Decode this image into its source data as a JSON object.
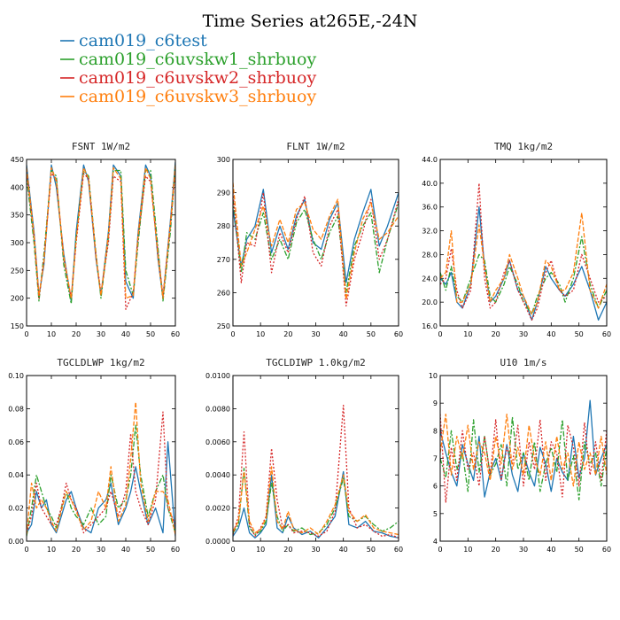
{
  "figure": {
    "title": "Time Series at265E,-24N"
  },
  "legend": [
    {
      "name": "cam019_c6test",
      "color": "#1f77b4",
      "dash": ""
    },
    {
      "name": "cam019_c6uvskw1_shrbuoy",
      "color": "#2ca02c",
      "dash": "6,2,2,2"
    },
    {
      "name": "cam019_c6uvskw2_shrbuoy",
      "color": "#d62728",
      "dash": "2,2"
    },
    {
      "name": "cam019_c6uvskw3_shrbuoy",
      "color": "#ff7f0e",
      "dash": "5,2"
    }
  ],
  "chart_data": [
    {
      "type": "line",
      "title": "FSNT  1W/m2",
      "xlim": [
        0,
        60
      ],
      "xticks": [
        0,
        10,
        20,
        30,
        40,
        50,
        60
      ],
      "ylim": [
        150,
        450
      ],
      "yticks": [
        150,
        200,
        250,
        300,
        350,
        400,
        450
      ],
      "yticklabels": [
        "150",
        "200",
        "250",
        "300",
        "350",
        "400",
        "450"
      ],
      "x": [
        0,
        3,
        5,
        7,
        10,
        12,
        15,
        18,
        20,
        23,
        25,
        28,
        30,
        33,
        35,
        38,
        40,
        43,
        45,
        48,
        50,
        53,
        55,
        58,
        60
      ],
      "series": [
        {
          "name": "cam019_c6test",
          "values": [
            440,
            320,
            205,
            260,
            440,
            400,
            280,
            195,
            320,
            440,
            410,
            270,
            205,
            320,
            440,
            420,
            230,
            200,
            320,
            440,
            420,
            270,
            200,
            340,
            445
          ]
        },
        {
          "name": "cam019_c6uvskw1_shrbuoy",
          "values": [
            420,
            300,
            195,
            280,
            430,
            420,
            260,
            190,
            310,
            430,
            420,
            280,
            200,
            310,
            430,
            430,
            250,
            205,
            300,
            430,
            430,
            290,
            195,
            320,
            440
          ]
        },
        {
          "name": "cam019_c6uvskw2_shrbuoy",
          "values": [
            430,
            310,
            200,
            270,
            425,
            415,
            270,
            200,
            300,
            425,
            415,
            275,
            210,
            300,
            420,
            410,
            180,
            210,
            310,
            420,
            410,
            280,
            205,
            330,
            430
          ]
        },
        {
          "name": "cam019_c6uvskw3_shrbuoy",
          "values": [
            435,
            315,
            205,
            265,
            435,
            410,
            275,
            200,
            305,
            435,
            415,
            275,
            205,
            315,
            435,
            415,
            200,
            205,
            315,
            435,
            415,
            275,
            200,
            335,
            440
          ]
        }
      ]
    },
    {
      "type": "line",
      "title": "FLNT  1W/m2",
      "xlim": [
        0,
        60
      ],
      "xticks": [
        0,
        10,
        20,
        30,
        40,
        50,
        60
      ],
      "ylim": [
        250,
        300
      ],
      "yticks": [
        250,
        260,
        270,
        280,
        290,
        300
      ],
      "yticklabels": [
        "250",
        "260",
        "270",
        "280",
        "290",
        "300"
      ],
      "x": [
        0,
        3,
        5,
        8,
        11,
        14,
        17,
        20,
        23,
        26,
        29,
        32,
        35,
        38,
        41,
        44,
        47,
        50,
        53,
        56,
        60
      ],
      "series": [
        {
          "name": "cam019_c6test",
          "values": [
            285,
            268,
            276,
            280,
            291,
            272,
            280,
            273,
            283,
            288,
            275,
            273,
            282,
            287,
            263,
            276,
            284,
            291,
            274,
            280,
            290
          ]
        },
        {
          "name": "cam019_c6uvskw1_shrbuoy",
          "values": [
            288,
            266,
            278,
            276,
            284,
            270,
            276,
            270,
            281,
            285,
            276,
            270,
            278,
            283,
            260,
            274,
            280,
            284,
            266,
            276,
            287
          ]
        },
        {
          "name": "cam019_c6uvskw2_shrbuoy",
          "values": [
            290,
            263,
            275,
            274,
            290,
            266,
            278,
            272,
            282,
            289,
            272,
            268,
            280,
            285,
            256,
            270,
            278,
            288,
            270,
            276,
            288
          ]
        },
        {
          "name": "cam019_c6uvskw3_shrbuoy",
          "values": [
            293,
            268,
            272,
            279,
            286,
            274,
            282,
            275,
            285,
            287,
            279,
            276,
            283,
            288,
            258,
            272,
            282,
            287,
            276,
            278,
            283
          ]
        }
      ]
    },
    {
      "type": "line",
      "title": "TMQ  1kg/m2",
      "xlim": [
        0,
        60
      ],
      "xticks": [
        0,
        10,
        20,
        30,
        40,
        50,
        60
      ],
      "ylim": [
        16,
        44
      ],
      "yticks": [
        16,
        20,
        24,
        28,
        32,
        36,
        40,
        44
      ],
      "yticklabels": [
        "16.0",
        "20.0",
        "24.0",
        "28.0",
        "32.0",
        "36.0",
        "40.0",
        "44.0"
      ],
      "x": [
        0,
        2,
        4,
        6,
        8,
        11,
        14,
        16,
        18,
        20,
        23,
        25,
        28,
        30,
        33,
        35,
        38,
        40,
        43,
        45,
        48,
        51,
        54,
        57,
        60
      ],
      "series": [
        {
          "name": "cam019_c6test",
          "values": [
            24,
            23,
            25,
            20,
            19,
            23,
            36,
            26,
            20,
            21,
            24,
            27,
            22,
            21,
            17,
            20,
            26,
            24,
            22,
            21,
            23,
            26,
            22,
            17,
            20
          ]
        },
        {
          "name": "cam019_c6uvskw1_shrbuoy",
          "values": [
            25,
            22,
            26,
            21,
            20,
            24,
            28,
            27,
            21,
            20,
            23,
            26,
            23,
            20,
            18,
            21,
            24,
            25,
            23,
            20,
            24,
            31,
            23,
            19,
            22
          ]
        },
        {
          "name": "cam019_c6uvskw2_shrbuoy",
          "values": [
            23,
            24,
            29,
            22,
            19,
            22,
            40,
            24,
            19,
            20,
            25,
            27,
            22,
            20,
            17,
            19,
            25,
            27,
            22,
            21,
            22,
            28,
            24,
            20,
            21
          ]
        },
        {
          "name": "cam019_c6uvskw3_shrbuoy",
          "values": [
            24,
            25,
            32,
            20,
            20,
            23,
            33,
            26,
            20,
            22,
            24,
            28,
            24,
            21,
            18,
            20,
            27,
            26,
            22,
            22,
            25,
            35,
            22,
            19,
            23
          ]
        }
      ]
    },
    {
      "type": "line",
      "title": "TGCLDLWP  1kg/m2",
      "xlim": [
        0,
        60
      ],
      "xticks": [
        0,
        10,
        20,
        30,
        40,
        50,
        60
      ],
      "ylim": [
        0,
        0.1
      ],
      "yticks": [
        0,
        0.02,
        0.04,
        0.06,
        0.08,
        0.1
      ],
      "yticklabels": [
        "0.00",
        "0.02",
        "0.04",
        "0.06",
        "0.08",
        "0.10"
      ],
      "x": [
        0,
        2,
        4,
        6,
        8,
        10,
        12,
        14,
        16,
        18,
        20,
        23,
        26,
        29,
        32,
        34,
        37,
        40,
        42,
        44,
        46,
        49,
        52,
        55,
        57,
        60
      ],
      "series": [
        {
          "name": "cam019_c6test",
          "values": [
            0.005,
            0.01,
            0.03,
            0.02,
            0.025,
            0.01,
            0.005,
            0.015,
            0.025,
            0.03,
            0.02,
            0.008,
            0.005,
            0.02,
            0.025,
            0.035,
            0.01,
            0.02,
            0.03,
            0.045,
            0.03,
            0.01,
            0.02,
            0.005,
            0.06,
            0.003
          ]
        },
        {
          "name": "cam019_c6uvskw1_shrbuoy",
          "values": [
            0.003,
            0.02,
            0.04,
            0.03,
            0.02,
            0.015,
            0.008,
            0.02,
            0.03,
            0.02,
            0.015,
            0.01,
            0.02,
            0.01,
            0.015,
            0.04,
            0.02,
            0.025,
            0.04,
            0.07,
            0.04,
            0.015,
            0.03,
            0.04,
            0.02,
            0.005
          ]
        },
        {
          "name": "cam019_c6uvskw2_shrbuoy",
          "values": [
            0.005,
            0.015,
            0.035,
            0.02,
            0.015,
            0.01,
            0.01,
            0.02,
            0.035,
            0.025,
            0.02,
            0.005,
            0.01,
            0.015,
            0.02,
            0.03,
            0.015,
            0.03,
            0.065,
            0.03,
            0.02,
            0.01,
            0.025,
            0.078,
            0.02,
            0.01
          ]
        },
        {
          "name": "cam019_c6uvskw3_shrbuoy",
          "values": [
            0.004,
            0.035,
            0.02,
            0.025,
            0.02,
            0.012,
            0.006,
            0.018,
            0.03,
            0.025,
            0.018,
            0.007,
            0.012,
            0.03,
            0.02,
            0.045,
            0.012,
            0.022,
            0.05,
            0.084,
            0.035,
            0.012,
            0.03,
            0.03,
            0.025,
            0.004
          ]
        }
      ]
    },
    {
      "type": "line",
      "title": "TGCLDIWP  1.0kg/m2",
      "xlim": [
        0,
        60
      ],
      "xticks": [
        0,
        10,
        20,
        30,
        40,
        50,
        60
      ],
      "ylim": [
        0,
        0.01
      ],
      "yticks": [
        0,
        0.002,
        0.004,
        0.006,
        0.008,
        0.01
      ],
      "yticklabels": [
        "0.0000",
        "0.0020",
        "0.0040",
        "0.0060",
        "0.0080",
        "0.0100"
      ],
      "x": [
        0,
        2,
        4,
        6,
        8,
        10,
        12,
        14,
        16,
        18,
        20,
        22,
        25,
        28,
        31,
        34,
        37,
        40,
        42,
        45,
        48,
        51,
        54,
        57,
        60
      ],
      "series": [
        {
          "name": "cam019_c6test",
          "values": [
            0.0003,
            0.0008,
            0.002,
            0.0005,
            0.0002,
            0.0005,
            0.001,
            0.004,
            0.0008,
            0.0005,
            0.0015,
            0.0008,
            0.0004,
            0.0006,
            0.0002,
            0.0008,
            0.0015,
            0.0042,
            0.001,
            0.0008,
            0.0012,
            0.0006,
            0.0005,
            0.0003,
            0.0002
          ]
        },
        {
          "name": "cam019_c6uvskw1_shrbuoy",
          "values": [
            0.0005,
            0.001,
            0.0044,
            0.0008,
            0.0004,
            0.0006,
            0.0012,
            0.0035,
            0.0015,
            0.0006,
            0.001,
            0.0006,
            0.0008,
            0.0004,
            0.0005,
            0.001,
            0.002,
            0.0038,
            0.0015,
            0.0012,
            0.0015,
            0.001,
            0.0006,
            0.0008,
            0.0012
          ]
        },
        {
          "name": "cam019_c6uvskw2_shrbuoy",
          "values": [
            0.0004,
            0.0015,
            0.0066,
            0.001,
            0.0003,
            0.0008,
            0.0015,
            0.0056,
            0.0025,
            0.0008,
            0.001,
            0.0005,
            0.0006,
            0.0005,
            0.0003,
            0.0006,
            0.0018,
            0.0082,
            0.002,
            0.0008,
            0.001,
            0.0006,
            0.0003,
            0.0004,
            0.0002
          ]
        },
        {
          "name": "cam019_c6uvskw3_shrbuoy",
          "values": [
            0.0006,
            0.0012,
            0.0042,
            0.0012,
            0.0005,
            0.0007,
            0.0014,
            0.0045,
            0.0012,
            0.0007,
            0.0018,
            0.0007,
            0.0005,
            0.0008,
            0.0004,
            0.0012,
            0.0022,
            0.004,
            0.0018,
            0.0012,
            0.0016,
            0.0008,
            0.0006,
            0.0005,
            0.0004
          ]
        }
      ]
    },
    {
      "type": "line",
      "title": "U10  1m/s",
      "xlim": [
        0,
        60
      ],
      "xticks": [
        0,
        10,
        20,
        30,
        40,
        50,
        60
      ],
      "ylim": [
        4,
        10
      ],
      "yticks": [
        4,
        5,
        6,
        7,
        8,
        9,
        10
      ],
      "yticklabels": [
        "4",
        "5",
        "6",
        "7",
        "8",
        "9",
        "10"
      ],
      "x": [
        0,
        2,
        4,
        6,
        8,
        10,
        12,
        14,
        16,
        18,
        20,
        22,
        24,
        26,
        28,
        30,
        32,
        34,
        36,
        38,
        40,
        42,
        44,
        46,
        48,
        50,
        52,
        54,
        56,
        58,
        60
      ],
      "series": [
        {
          "name": "cam019_c6test",
          "values": [
            8,
            7.2,
            6.5,
            6,
            7.5,
            6.8,
            6.2,
            7.8,
            5.6,
            6.5,
            7,
            6.2,
            7.5,
            6.4,
            5.8,
            7.2,
            6.5,
            6,
            7.4,
            6.8,
            5.8,
            7,
            6.5,
            6.2,
            7.8,
            6.3,
            7,
            9.1,
            6.4,
            7,
            7.5
          ]
        },
        {
          "name": "cam019_c6uvskw1_shrbuoy",
          "values": [
            7,
            6.3,
            8,
            6.6,
            7.2,
            5.8,
            8.4,
            6.5,
            7.8,
            6.4,
            6.8,
            7.5,
            6,
            8.5,
            6.6,
            7.2,
            6.2,
            7.6,
            5.8,
            6.8,
            7.4,
            6.5,
            8.4,
            6.2,
            7.1,
            5.5,
            7.6,
            6.8,
            7.2,
            6,
            7.4
          ]
        },
        {
          "name": "cam019_c6uvskw2_shrbuoy",
          "values": [
            8.6,
            5.4,
            7.4,
            6.2,
            8,
            6.6,
            7.2,
            6,
            7.8,
            6.4,
            8.4,
            6.2,
            7.4,
            6.8,
            8.2,
            6,
            7.6,
            6.6,
            8.4,
            6.2,
            7.6,
            7.2,
            5.6,
            8.2,
            7.4,
            6,
            8.3,
            6.4,
            7.6,
            6.2,
            8
          ]
        },
        {
          "name": "cam019_c6uvskw3_shrbuoy",
          "values": [
            7.2,
            8.6,
            6.4,
            7.8,
            7,
            8.2,
            6.6,
            7.6,
            7.2,
            6.2,
            7.8,
            6.8,
            8.6,
            6.6,
            7.4,
            6.4,
            8.2,
            7,
            6.4,
            7.6,
            6.2,
            7.8,
            6.6,
            7.2,
            6,
            7.6,
            6.6,
            7.2,
            6.4,
            7.8,
            6.4
          ]
        }
      ]
    }
  ]
}
